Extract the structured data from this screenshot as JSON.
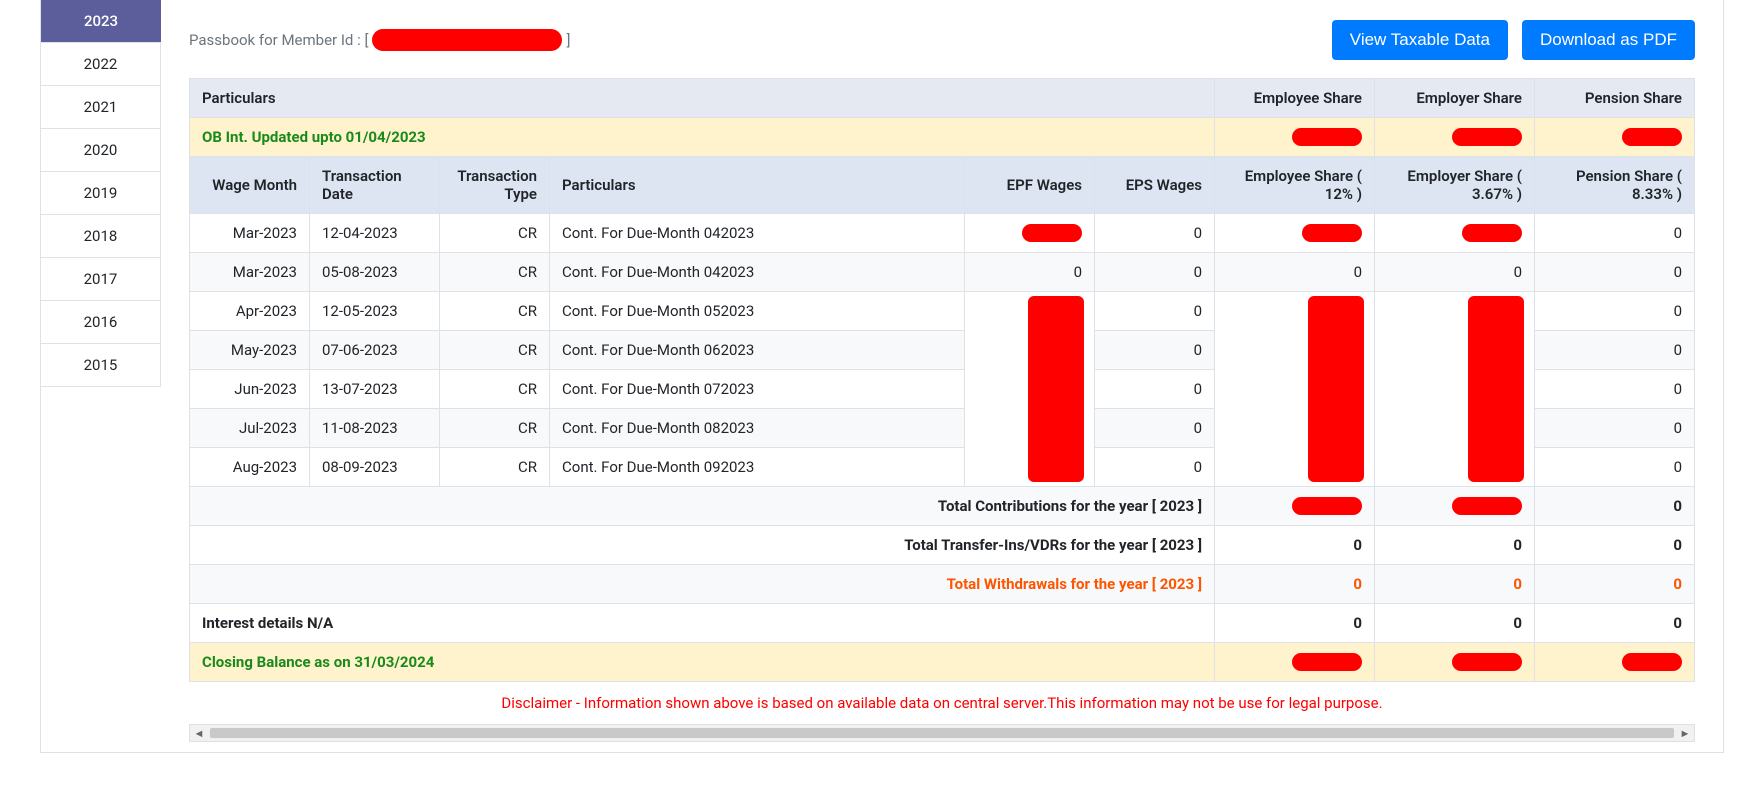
{
  "colors": {
    "tab_active_bg": "#5c5e9c",
    "btn_bg": "#007bff",
    "ob_bg": "#fff3cd",
    "ob_text": "#1a8a1a",
    "withdraw_text": "#ff5500",
    "disclaimer_text": "#ff0000",
    "redacted": "#ff0000",
    "header1_bg": "#e4e9f2",
    "header2_bg": "#dde5f3"
  },
  "years": [
    "2023",
    "2022",
    "2021",
    "2020",
    "2019",
    "2018",
    "2017",
    "2016",
    "2015"
  ],
  "active_year": "2023",
  "member_label": "Passbook for Member Id : [",
  "member_label_close": "]",
  "buttons": {
    "taxable": "View Taxable Data",
    "pdf": "Download as PDF"
  },
  "hdr1": {
    "particulars": "Particulars",
    "emp_share": "Employee Share",
    "empr_share": "Employer Share",
    "pension": "Pension Share"
  },
  "ob_label": "OB Int. Updated upto 01/04/2023",
  "hdr2": {
    "wage_month": "Wage Month",
    "txn_date": "Transaction Date",
    "txn_type": "Transaction Type",
    "particulars": "Particulars",
    "epf_wages": "EPF Wages",
    "eps_wages": "EPS Wages",
    "emp_share": "Employee Share ( 12% )",
    "empr_share": "Employer Share ( 3.67% )",
    "pension": "Pension Share ( 8.33% )"
  },
  "rows": [
    {
      "wage": "Mar-2023",
      "date": "12-04-2023",
      "type": "CR",
      "part": "Cont. For Due-Month 042023",
      "epf": "REDACTED",
      "eps": "0",
      "emp": "REDACTED",
      "empr": "REDACTED",
      "pen": "0"
    },
    {
      "wage": "Mar-2023",
      "date": "05-08-2023",
      "type": "CR",
      "part": "Cont. For Due-Month 042023",
      "epf": "0",
      "eps": "0",
      "emp": "0",
      "empr": "0",
      "pen": "0"
    },
    {
      "wage": "Apr-2023",
      "date": "12-05-2023",
      "type": "CR",
      "part": "Cont. For Due-Month 052023",
      "epf": "REDACTED",
      "eps": "0",
      "emp": "REDACTED",
      "empr": "REDACTED",
      "pen": "0"
    },
    {
      "wage": "May-2023",
      "date": "07-06-2023",
      "type": "CR",
      "part": "Cont. For Due-Month 062023",
      "epf": "REDACTED",
      "eps": "0",
      "emp": "REDACTED",
      "empr": "REDACTED",
      "pen": "0"
    },
    {
      "wage": "Jun-2023",
      "date": "13-07-2023",
      "type": "CR",
      "part": "Cont. For Due-Month 072023",
      "epf": "REDACTED",
      "eps": "0",
      "emp": "REDACTED",
      "empr": "REDACTED",
      "pen": "0"
    },
    {
      "wage": "Jul-2023",
      "date": "11-08-2023",
      "type": "CR",
      "part": "Cont. For Due-Month 082023",
      "epf": "REDACTED",
      "eps": "0",
      "emp": "REDACTED",
      "empr": "REDACTED",
      "pen": "0"
    },
    {
      "wage": "Aug-2023",
      "date": "08-09-2023",
      "type": "CR",
      "part": "Cont. For Due-Month 092023",
      "epf": "REDACTED",
      "eps": "0",
      "emp": "REDACTED",
      "empr": "REDACTED",
      "pen": "0"
    }
  ],
  "summary": {
    "total_contrib_label": "Total Contributions for the year [ 2023 ]",
    "total_contrib": {
      "emp": "REDACTED",
      "empr": "REDACTED",
      "pen": "0"
    },
    "total_transfer_label": "Total Transfer-Ins/VDRs for the year [ 2023 ]",
    "total_transfer": {
      "emp": "0",
      "empr": "0",
      "pen": "0"
    },
    "total_withdraw_label": "Total Withdrawals for the year [ 2023 ]",
    "total_withdraw": {
      "emp": "0",
      "empr": "0",
      "pen": "0"
    },
    "interest_label": "Interest details N/A",
    "interest": {
      "emp": "0",
      "empr": "0",
      "pen": "0"
    },
    "closing_label": "Closing Balance as on 31/03/2024",
    "closing": {
      "emp": "REDACTED",
      "empr": "REDACTED",
      "pen": "REDACTED"
    }
  },
  "disclaimer": "Disclaimer - Information shown above is based on available data on central server.This information may not be use for legal purpose."
}
